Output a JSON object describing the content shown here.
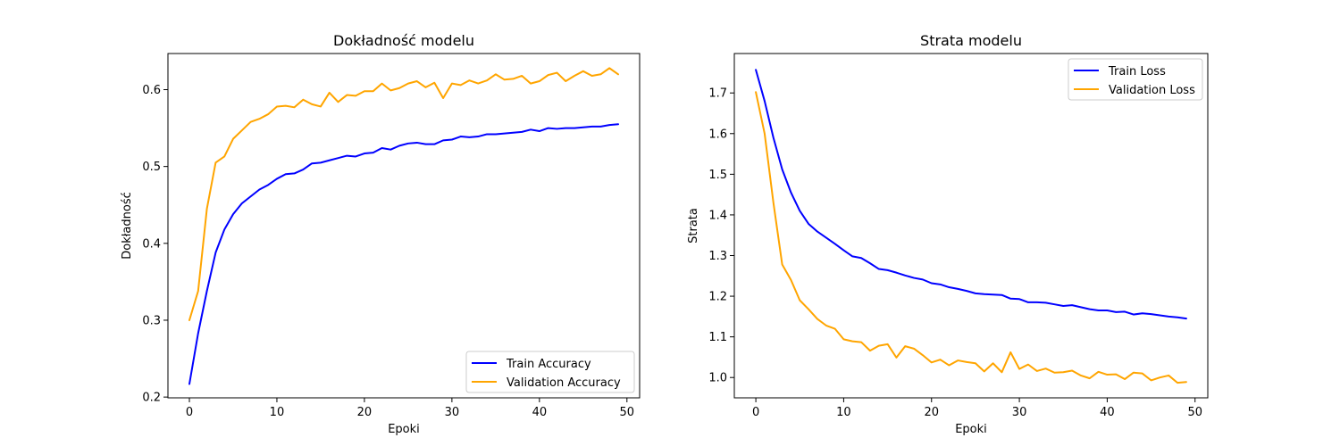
{
  "chart_data": [
    {
      "type": "line",
      "title": "Dokładność modelu",
      "xlabel": "Epoki",
      "ylabel": "Dokładność",
      "xlim": [
        -2.45,
        51.45
      ],
      "ylim": [
        0.199,
        0.647
      ],
      "xticks": [
        0,
        10,
        20,
        30,
        40,
        50
      ],
      "yticks": [
        0.2,
        0.3,
        0.4,
        0.5,
        0.6
      ],
      "xtick_labels": [
        "0",
        "10",
        "20",
        "30",
        "40",
        "50"
      ],
      "ytick_labels": [
        "0.2",
        "0.3",
        "0.4",
        "0.5",
        "0.6"
      ],
      "grid": false,
      "legend_position": "lower-right",
      "x": [
        0,
        1,
        2,
        3,
        4,
        5,
        6,
        7,
        8,
        9,
        10,
        11,
        12,
        13,
        14,
        15,
        16,
        17,
        18,
        19,
        20,
        21,
        22,
        23,
        24,
        25,
        26,
        27,
        28,
        29,
        30,
        31,
        32,
        33,
        34,
        35,
        36,
        37,
        38,
        39,
        40,
        41,
        42,
        43,
        44,
        45,
        46,
        47,
        48,
        49
      ],
      "series": [
        {
          "name": "Train Accuracy",
          "color": "#0000ff",
          "values": [
            0.217,
            0.283,
            0.338,
            0.388,
            0.418,
            0.438,
            0.452,
            0.461,
            0.47,
            0.476,
            0.484,
            0.49,
            0.491,
            0.496,
            0.504,
            0.505,
            0.508,
            0.511,
            0.514,
            0.513,
            0.517,
            0.518,
            0.524,
            0.522,
            0.527,
            0.53,
            0.531,
            0.529,
            0.529,
            0.534,
            0.535,
            0.539,
            0.538,
            0.539,
            0.542,
            0.542,
            0.543,
            0.544,
            0.545,
            0.548,
            0.546,
            0.55,
            0.549,
            0.55,
            0.55,
            0.551,
            0.552,
            0.552,
            0.554,
            0.555
          ]
        },
        {
          "name": "Validation Accuracy",
          "color": "#ffa500",
          "values": [
            0.3,
            0.338,
            0.445,
            0.505,
            0.513,
            0.536,
            0.547,
            0.558,
            0.562,
            0.568,
            0.578,
            0.579,
            0.577,
            0.587,
            0.581,
            0.578,
            0.596,
            0.584,
            0.593,
            0.592,
            0.598,
            0.598,
            0.608,
            0.599,
            0.602,
            0.608,
            0.611,
            0.603,
            0.609,
            0.589,
            0.608,
            0.606,
            0.612,
            0.608,
            0.612,
            0.62,
            0.613,
            0.614,
            0.618,
            0.608,
            0.611,
            0.619,
            0.622,
            0.611,
            0.618,
            0.624,
            0.618,
            0.62,
            0.628,
            0.62
          ]
        }
      ]
    },
    {
      "type": "line",
      "title": "Strata modelu",
      "xlabel": "Epoki",
      "ylabel": "Strata",
      "xlim": [
        -2.45,
        51.45
      ],
      "ylim": [
        0.95,
        1.797
      ],
      "xticks": [
        0,
        10,
        20,
        30,
        40,
        50
      ],
      "yticks": [
        1.0,
        1.1,
        1.2,
        1.3,
        1.4,
        1.5,
        1.6,
        1.7
      ],
      "xtick_labels": [
        "0",
        "10",
        "20",
        "30",
        "40",
        "50"
      ],
      "ytick_labels": [
        "1.0",
        "1.1",
        "1.2",
        "1.3",
        "1.4",
        "1.5",
        "1.6",
        "1.7"
      ],
      "grid": false,
      "legend_position": "upper-right",
      "x": [
        0,
        1,
        2,
        3,
        4,
        5,
        6,
        7,
        8,
        9,
        10,
        11,
        12,
        13,
        14,
        15,
        16,
        17,
        18,
        19,
        20,
        21,
        22,
        23,
        24,
        25,
        26,
        27,
        28,
        29,
        30,
        31,
        32,
        33,
        34,
        35,
        36,
        37,
        38,
        39,
        40,
        41,
        42,
        43,
        44,
        45,
        46,
        47,
        48,
        49
      ],
      "series": [
        {
          "name": "Train Loss",
          "color": "#0000ff",
          "values": [
            1.757,
            1.68,
            1.59,
            1.512,
            1.455,
            1.41,
            1.378,
            1.359,
            1.344,
            1.329,
            1.313,
            1.298,
            1.294,
            1.281,
            1.267,
            1.264,
            1.258,
            1.251,
            1.245,
            1.241,
            1.232,
            1.229,
            1.222,
            1.218,
            1.213,
            1.207,
            1.205,
            1.204,
            1.203,
            1.194,
            1.193,
            1.185,
            1.185,
            1.184,
            1.18,
            1.176,
            1.178,
            1.173,
            1.168,
            1.165,
            1.165,
            1.161,
            1.162,
            1.155,
            1.158,
            1.156,
            1.153,
            1.15,
            1.148,
            1.145
          ]
        },
        {
          "name": "Validation Loss",
          "color": "#ffa500",
          "values": [
            1.702,
            1.6,
            1.43,
            1.278,
            1.24,
            1.19,
            1.168,
            1.144,
            1.128,
            1.12,
            1.094,
            1.089,
            1.087,
            1.066,
            1.078,
            1.082,
            1.049,
            1.077,
            1.071,
            1.055,
            1.037,
            1.044,
            1.03,
            1.042,
            1.038,
            1.035,
            1.015,
            1.035,
            1.013,
            1.062,
            1.021,
            1.032,
            1.016,
            1.022,
            1.012,
            1.013,
            1.017,
            1.005,
            0.998,
            1.014,
            1.007,
            1.008,
            0.996,
            1.012,
            1.01,
            0.993,
            1.0,
            1.005,
            0.987,
            0.989
          ]
        }
      ]
    }
  ]
}
